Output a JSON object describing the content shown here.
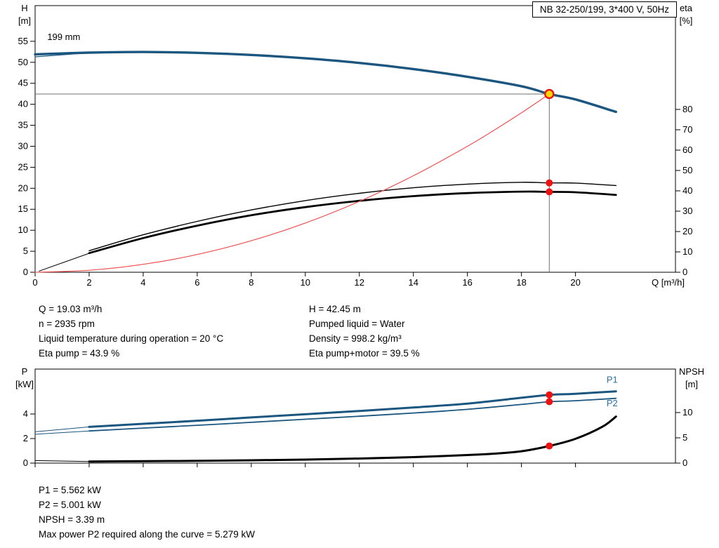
{
  "title_box": {
    "label": "NB 32-250/199, 3*400 V, 50Hz"
  },
  "info_top": {
    "left": [
      "Q = 19.03 m³/h",
      "n = 2935 rpm",
      "Liquid temperature during operation = 20 °C",
      "Eta pump = 43.9 %"
    ],
    "right": [
      "H = 42.45 m",
      "Pumped liquid = Water",
      "Density = 998.2 kg/m³",
      "Eta pump+motor = 39.5 %"
    ]
  },
  "info_bottom": [
    "P1 = 5.562 kW",
    "P2 = 5.001 kW",
    "NPSH = 3.39 m",
    "Max power P2 required along the curve = 5.279 kW"
  ],
  "colors": {
    "curve_blue": "#1a567f",
    "label_blue": "#2e6fa8",
    "curve_black": "#000000",
    "curve_red": "#f05050",
    "marker_red": "#ee1111",
    "duty_yellow": "#ffd800",
    "crosshair_gray": "#707070"
  },
  "chart_data": [
    {
      "name": "qh-eta-chart",
      "type": "line",
      "title": "NB 32-250/199, 3*400 V, 50Hz",
      "x": {
        "label": "Q [m³/h]",
        "min": 0,
        "max": 23.7,
        "ticks": [
          0,
          2,
          4,
          6,
          8,
          10,
          12,
          14,
          16,
          18,
          20
        ]
      },
      "y_left": {
        "label": "H",
        "unit": "[m]",
        "min": 0,
        "max": 63.5,
        "ticks": [
          0,
          5,
          10,
          15,
          20,
          25,
          30,
          35,
          40,
          45,
          50,
          55
        ]
      },
      "y_right": {
        "label": "eta",
        "unit": "[%]",
        "min": 0,
        "max": 131,
        "ticks": [
          0,
          10,
          20,
          30,
          40,
          50,
          60,
          70,
          80
        ]
      },
      "grid": false,
      "crosshair": {
        "x": 19.03,
        "y": 42.45
      },
      "series": [
        {
          "name": "eta-lead-line",
          "axis": "right",
          "color": "#000000",
          "width": 1,
          "x": [
            0.15,
            2
          ],
          "y": [
            0.6,
            9.3
          ]
        },
        {
          "name": "eta-pump-curve",
          "axis": "right",
          "color": "#000000",
          "width": 1.4,
          "x": [
            2,
            4,
            6,
            8,
            10,
            12,
            14,
            16,
            18,
            19.03,
            20,
            21.5
          ],
          "y": [
            10.6,
            18.4,
            25.0,
            30.6,
            35.2,
            38.8,
            41.5,
            43.3,
            44.2,
            43.9,
            43.8,
            42.6
          ]
        },
        {
          "name": "eta-pump-motor-curve",
          "axis": "right",
          "color": "#000000",
          "width": 2.8,
          "x": [
            2,
            4,
            6,
            8,
            10,
            12,
            14,
            16,
            18,
            19.03,
            20,
            21.5
          ],
          "y": [
            9.4,
            16.8,
            22.9,
            28.0,
            32.0,
            35.1,
            37.4,
            38.9,
            39.6,
            39.5,
            39.3,
            38.0
          ]
        },
        {
          "name": "system-curve",
          "axis": "left",
          "color": "#f05050",
          "width": 1.2,
          "x": [
            0,
            2,
            4,
            6,
            8,
            10,
            12,
            14,
            16,
            17,
            18,
            19.03
          ],
          "y": [
            0,
            0.47,
            1.88,
            4.22,
            7.5,
            11.72,
            16.88,
            22.97,
            30.0,
            33.88,
            37.97,
            42.45
          ]
        },
        {
          "name": "head-lead-line",
          "axis": "left",
          "color": "#1a567f",
          "width": 1.2,
          "x": [
            0,
            2
          ],
          "y": [
            51.3,
            52.25
          ]
        },
        {
          "name": "head-curve-199mm",
          "axis": "left",
          "color": "#1a567f",
          "width": 3.4,
          "x": [
            0,
            2,
            4,
            6,
            8,
            10,
            12,
            14,
            16,
            18,
            19.03,
            20,
            21.5
          ],
          "y": [
            51.9,
            52.3,
            52.45,
            52.25,
            51.75,
            50.95,
            49.85,
            48.4,
            46.55,
            44.3,
            42.45,
            41.15,
            38.2
          ]
        }
      ],
      "markers": [
        {
          "name": "eta-pump-point",
          "x": 19.03,
          "y": 43.9,
          "axis": "right",
          "r": 5,
          "fill": "#ee1111"
        },
        {
          "name": "eta-pump-motor-point",
          "x": 19.03,
          "y": 39.5,
          "axis": "right",
          "r": 5,
          "fill": "#ee1111"
        },
        {
          "name": "duty-point",
          "x": 19.03,
          "y": 42.45,
          "axis": "left",
          "r": 6,
          "fill": "#ffd800",
          "stroke": "#ee1111",
          "stroke_width": 2.4
        }
      ],
      "annotations": [
        {
          "name": "impeller-diameter-label",
          "text": "199 mm",
          "x": 0.45,
          "y": 55.3,
          "axis": "left",
          "color": "#000000",
          "anchor": "start"
        }
      ]
    },
    {
      "name": "power-npsh-chart",
      "type": "line",
      "x": {
        "label": "",
        "min": 0,
        "max": 23.7,
        "ticks": [
          0,
          2,
          4,
          6,
          8,
          10,
          12,
          14,
          16,
          18,
          20
        ]
      },
      "y_left": {
        "label": "P",
        "unit": "[kW]",
        "min": 0,
        "max": 7.66,
        "ticks": [
          0,
          2,
          4
        ]
      },
      "y_right": {
        "label": "NPSH",
        "unit": "[m]",
        "min": 0,
        "max": 18.6,
        "ticks": [
          0,
          5,
          10
        ]
      },
      "grid": false,
      "series": [
        {
          "name": "p1-lead-line",
          "axis": "left",
          "color": "#1a567f",
          "width": 1,
          "x": [
            0,
            2
          ],
          "y": [
            2.55,
            2.95
          ]
        },
        {
          "name": "p2-lead-line",
          "axis": "left",
          "color": "#1a567f",
          "width": 1,
          "x": [
            0,
            2
          ],
          "y": [
            2.35,
            2.62
          ]
        },
        {
          "name": "p1-curve",
          "axis": "left",
          "color": "#1a567f",
          "width": 3,
          "x": [
            2,
            4,
            6,
            8,
            10,
            12,
            14,
            16,
            18,
            19.03,
            20,
            21.5
          ],
          "y": [
            2.95,
            3.2,
            3.45,
            3.72,
            3.98,
            4.25,
            4.53,
            4.85,
            5.32,
            5.562,
            5.65,
            5.85
          ]
        },
        {
          "name": "p2-curve",
          "axis": "left",
          "color": "#1a567f",
          "width": 1.8,
          "x": [
            2,
            4,
            6,
            8,
            10,
            12,
            14,
            16,
            18,
            19.03,
            20,
            21.5
          ],
          "y": [
            2.62,
            2.85,
            3.08,
            3.32,
            3.57,
            3.82,
            4.08,
            4.38,
            4.78,
            5.001,
            5.08,
            5.279
          ]
        },
        {
          "name": "npsh-lead-line",
          "axis": "right",
          "color": "#000000",
          "width": 1,
          "x": [
            0,
            2
          ],
          "y": [
            0.5,
            0.32
          ]
        },
        {
          "name": "npsh-curve",
          "axis": "right",
          "color": "#000000",
          "width": 3,
          "x": [
            2,
            4,
            6,
            8,
            10,
            12,
            14,
            16,
            17,
            18,
            19.03,
            20,
            21,
            21.5
          ],
          "y": [
            0.32,
            0.38,
            0.45,
            0.55,
            0.7,
            0.9,
            1.18,
            1.6,
            1.88,
            2.35,
            3.39,
            4.8,
            7.2,
            9.2
          ]
        }
      ],
      "markers": [
        {
          "name": "p1-point",
          "x": 19.03,
          "y": 5.562,
          "axis": "left",
          "r": 5,
          "fill": "#ee1111"
        },
        {
          "name": "p2-point",
          "x": 19.03,
          "y": 5.001,
          "axis": "left",
          "r": 5,
          "fill": "#ee1111"
        },
        {
          "name": "npsh-point",
          "x": 19.03,
          "y": 3.39,
          "axis": "right",
          "r": 5,
          "fill": "#ee1111"
        }
      ],
      "annotations": [
        {
          "name": "p1-curve-label",
          "text": "P1",
          "x": 21.15,
          "y": 6.55,
          "axis": "left",
          "color": "#2e6fa8",
          "anchor": "start"
        },
        {
          "name": "p2-curve-label",
          "text": "P2",
          "x": 21.15,
          "y": 4.62,
          "axis": "left",
          "color": "#2e6fa8",
          "anchor": "start"
        }
      ]
    }
  ]
}
